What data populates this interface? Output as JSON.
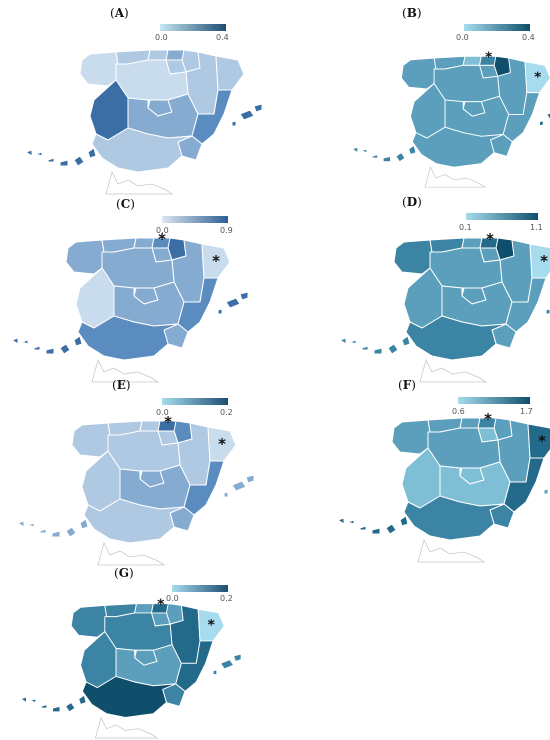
{
  "palette": {
    "c1": "#e3edf6",
    "c2": "#c9dced",
    "c3": "#afc9e2",
    "c4": "#86abd1",
    "c5": "#5b8cbf",
    "c6": "#3c6ea6",
    "t1": "#a7dcef",
    "t2": "#7fbfd6",
    "t3": "#5b9fbc",
    "t4": "#3c84a3",
    "t5": "#236a8a",
    "t6": "#0f4f6b",
    "star": "#111111"
  },
  "panels": [
    {
      "letter": "A",
      "legend_min": "0.0",
      "legend_max": "0.4",
      "legend_from": "#c5e6f3",
      "legend_to": "#1d4e72",
      "regions": {
        "galicia": "c2",
        "asturias": "c3",
        "cantabria": "c3",
        "basque": "c4",
        "navarra": "c3",
        "rioja": "c3",
        "aragon": "c3",
        "catalonia": "c3",
        "castilla_leon": "c2",
        "madrid": "c4",
        "castilla_mancha": "c4",
        "extremadura": "c6",
        "valencia": "c5",
        "murcia": "c4",
        "andalusia": "c3",
        "baleares": "c6",
        "canarias": "c6"
      },
      "stars": []
    },
    {
      "letter": "B",
      "legend_min": "0.0",
      "legend_max": "0.4",
      "legend_from": "#a7dcef",
      "legend_to": "#0f4f6b",
      "regions": {
        "galicia": "t3",
        "asturias": "t3",
        "cantabria": "t2",
        "basque": "t4",
        "navarra": "t6",
        "rioja": "t3",
        "aragon": "t3",
        "catalonia": "t1",
        "castilla_leon": "t3",
        "madrid": "t3",
        "castilla_mancha": "t3",
        "extremadura": "t3",
        "valencia": "t3",
        "murcia": "t3",
        "andalusia": "t3",
        "baleares": "t5",
        "canarias": "t4"
      },
      "stars": [
        "basque",
        "catalonia"
      ]
    },
    {
      "letter": "C",
      "legend_min": "0.0",
      "legend_max": "0.9",
      "legend_from": "#dde6f1",
      "legend_to": "#2e5f96",
      "regions": {
        "galicia": "c4",
        "asturias": "c4",
        "cantabria": "c4",
        "basque": "c5",
        "navarra": "c6",
        "rioja": "c4",
        "aragon": "c4",
        "catalonia": "c2",
        "castilla_leon": "c4",
        "madrid": "c4",
        "castilla_mancha": "c4",
        "extremadura": "c2",
        "valencia": "c5",
        "murcia": "c4",
        "andalusia": "c5",
        "baleares": "c6",
        "canarias": "c6"
      },
      "stars": [
        "basque",
        "catalonia"
      ]
    },
    {
      "letter": "D",
      "legend_min": "0.1",
      "legend_max": "1.1",
      "legend_from": "#a7dcef",
      "legend_to": "#0f4f6b",
      "regions": {
        "galicia": "t4",
        "asturias": "t4",
        "cantabria": "t3",
        "basque": "t5",
        "navarra": "t6",
        "rioja": "t3",
        "aragon": "t3",
        "catalonia": "t1",
        "castilla_leon": "t3",
        "madrid": "t3",
        "castilla_mancha": "t3",
        "extremadura": "t3",
        "valencia": "t3",
        "murcia": "t3",
        "andalusia": "t4",
        "baleares": "t4",
        "canarias": "t4"
      },
      "stars": [
        "basque",
        "catalonia"
      ]
    },
    {
      "letter": "E",
      "legend_min": "0.0",
      "legend_max": "0.2",
      "legend_from": "#a7dcef",
      "legend_to": "#1d4e72",
      "regions": {
        "galicia": "c3",
        "asturias": "c3",
        "cantabria": "c3",
        "basque": "c6",
        "navarra": "c5",
        "rioja": "c3",
        "aragon": "c3",
        "catalonia": "c2",
        "castilla_leon": "c3",
        "madrid": "c4",
        "castilla_mancha": "c4",
        "extremadura": "c3",
        "valencia": "c5",
        "murcia": "c4",
        "andalusia": "c3",
        "baleares": "c4",
        "canarias": "c4"
      },
      "stars": [
        "basque",
        "catalonia"
      ]
    },
    {
      "letter": "F",
      "legend_min": "0.6",
      "legend_max": "1.7",
      "legend_from": "#a7dcef",
      "legend_to": "#0f4f6b",
      "regions": {
        "galicia": "t3",
        "asturias": "t3",
        "cantabria": "t3",
        "basque": "t4",
        "navarra": "t3",
        "rioja": "t2",
        "aragon": "t3",
        "catalonia": "t5",
        "castilla_leon": "t3",
        "madrid": "t2",
        "castilla_mancha": "t2",
        "extremadura": "t2",
        "valencia": "t5",
        "murcia": "t4",
        "andalusia": "t4",
        "baleares": "t3",
        "canarias": "t5"
      },
      "stars": [
        "basque",
        "catalonia"
      ]
    },
    {
      "letter": "G",
      "legend_min": "0.0",
      "legend_max": "0.2",
      "legend_from": "#a7dcef",
      "legend_to": "#1d4e72",
      "regions": {
        "galicia": "t4",
        "asturias": "t4",
        "cantabria": "t3",
        "basque": "t5",
        "navarra": "t3",
        "rioja": "t3",
        "aragon": "t5",
        "catalonia": "t1",
        "castilla_leon": "t4",
        "madrid": "t3",
        "castilla_mancha": "t3",
        "extremadura": "t4",
        "valencia": "t5",
        "murcia": "t4",
        "andalusia": "t6",
        "baleares": "t4",
        "canarias": "t5"
      },
      "stars": [
        "basque",
        "catalonia"
      ]
    }
  ]
}
